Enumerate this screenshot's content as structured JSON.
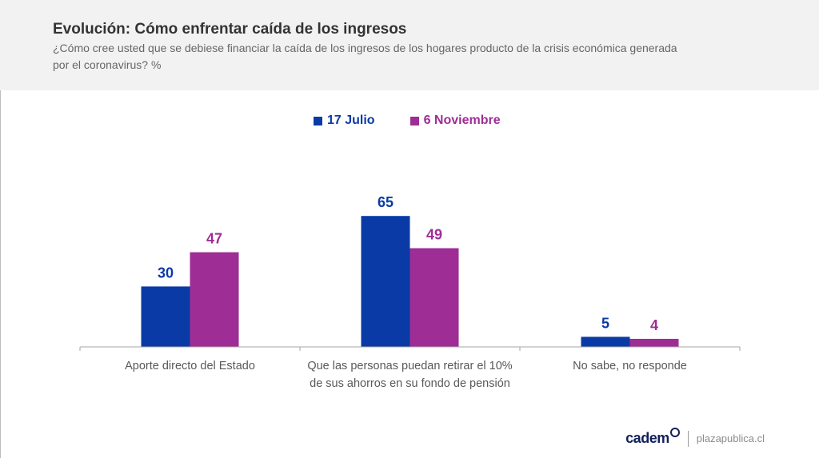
{
  "header": {
    "title": "Evolución: Cómo enfrentar caída de los ingresos",
    "subtitle": "¿Cómo cree usted que se debiese financiar la caída de los ingresos de los hogares producto de la crisis económica generada por el coronavirus? %"
  },
  "colors": {
    "series1": "#0a3aa6",
    "series2": "#9e2d95",
    "axis": "#a6a6a6",
    "label_text": "#595959"
  },
  "chart_data": {
    "type": "bar",
    "title": "Evolución: Cómo enfrentar caída de los ingresos",
    "categories": [
      [
        "Aporte directo del Estado"
      ],
      [
        "Que las personas puedan retirar el 10%",
        "de sus ahorros en su fondo de pensión"
      ],
      [
        "No sabe, no responde"
      ]
    ],
    "series": [
      {
        "name": "17 Julio",
        "values": [
          30,
          65,
          5
        ],
        "color": "#0a3aa6"
      },
      {
        "name": "6 Noviembre",
        "values": [
          47,
          49,
          4
        ],
        "color": "#9e2d95"
      }
    ],
    "ylim": [
      0,
      70
    ],
    "grid": false,
    "legend": "top-center",
    "data_labels": true
  },
  "footer": {
    "brand": "cadem",
    "site": "plazapublica.cl"
  }
}
